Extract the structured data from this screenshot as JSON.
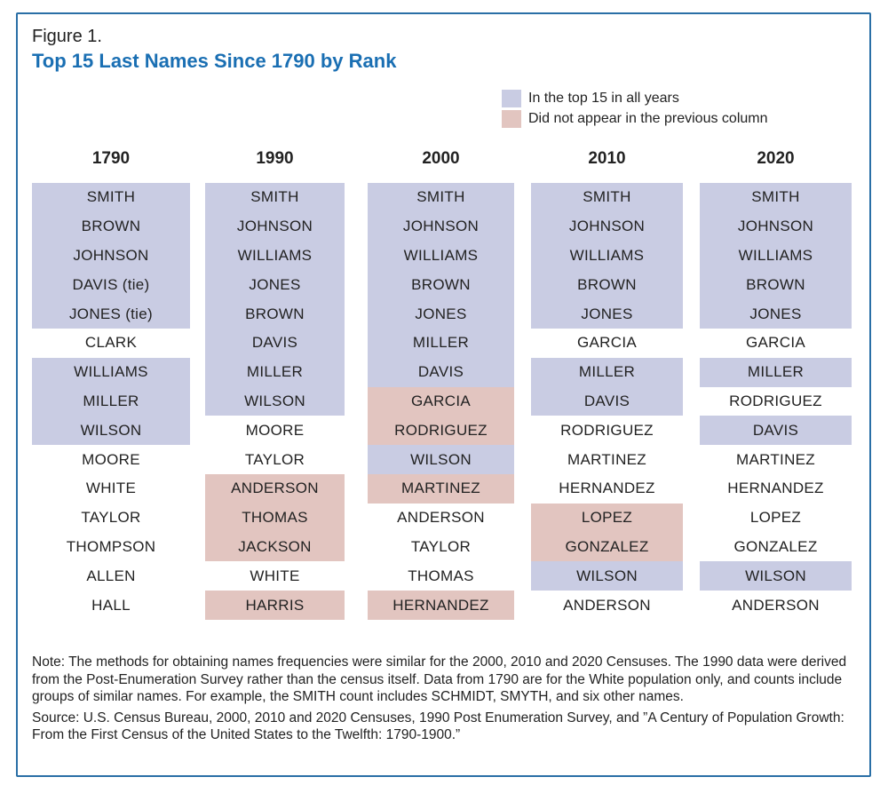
{
  "figure_label": "Figure 1.",
  "title": "Top 15 Last Names Since 1790 by Rank",
  "colors": {
    "all_years": "#c9cce3",
    "new_entry": "#e2c5c0",
    "title": "#1a6fb3",
    "frame": "#2a6fa6"
  },
  "legend": [
    {
      "label": "In the top 15 in all years",
      "color": "#c9cce3",
      "status": "all_years"
    },
    {
      "label": "Did not appear in the previous column",
      "color": "#e2c5c0",
      "status": "new_entry"
    }
  ],
  "chart_data": {
    "type": "table",
    "columns": [
      {
        "year": "1790",
        "names": [
          {
            "name": "SMITH",
            "status": "all_years"
          },
          {
            "name": "BROWN",
            "status": "all_years"
          },
          {
            "name": "JOHNSON",
            "status": "all_years"
          },
          {
            "name": "DAVIS (tie)",
            "status": "all_years"
          },
          {
            "name": "JONES (tie)",
            "status": "all_years"
          },
          {
            "name": "CLARK",
            "status": "none"
          },
          {
            "name": "WILLIAMS",
            "status": "all_years"
          },
          {
            "name": "MILLER",
            "status": "all_years"
          },
          {
            "name": "WILSON",
            "status": "all_years"
          },
          {
            "name": "MOORE",
            "status": "none"
          },
          {
            "name": "WHITE",
            "status": "none"
          },
          {
            "name": "TAYLOR",
            "status": "none"
          },
          {
            "name": "THOMPSON",
            "status": "none"
          },
          {
            "name": "ALLEN",
            "status": "none"
          },
          {
            "name": "HALL",
            "status": "none"
          }
        ]
      },
      {
        "year": "1990",
        "names": [
          {
            "name": "SMITH",
            "status": "all_years"
          },
          {
            "name": "JOHNSON",
            "status": "all_years"
          },
          {
            "name": "WILLIAMS",
            "status": "all_years"
          },
          {
            "name": "JONES",
            "status": "all_years"
          },
          {
            "name": "BROWN",
            "status": "all_years"
          },
          {
            "name": "DAVIS",
            "status": "all_years"
          },
          {
            "name": "MILLER",
            "status": "all_years"
          },
          {
            "name": "WILSON",
            "status": "all_years"
          },
          {
            "name": "MOORE",
            "status": "none"
          },
          {
            "name": "TAYLOR",
            "status": "none"
          },
          {
            "name": "ANDERSON",
            "status": "new_entry"
          },
          {
            "name": "THOMAS",
            "status": "new_entry"
          },
          {
            "name": "JACKSON",
            "status": "new_entry"
          },
          {
            "name": "WHITE",
            "status": "none"
          },
          {
            "name": "HARRIS",
            "status": "new_entry"
          }
        ]
      },
      {
        "year": "2000",
        "names": [
          {
            "name": "SMITH",
            "status": "all_years"
          },
          {
            "name": "JOHNSON",
            "status": "all_years"
          },
          {
            "name": "WILLIAMS",
            "status": "all_years"
          },
          {
            "name": "BROWN",
            "status": "all_years"
          },
          {
            "name": "JONES",
            "status": "all_years"
          },
          {
            "name": "MILLER",
            "status": "all_years"
          },
          {
            "name": "DAVIS",
            "status": "all_years"
          },
          {
            "name": "GARCIA",
            "status": "new_entry"
          },
          {
            "name": "RODRIGUEZ",
            "status": "new_entry"
          },
          {
            "name": "WILSON",
            "status": "all_years"
          },
          {
            "name": "MARTINEZ",
            "status": "new_entry"
          },
          {
            "name": "ANDERSON",
            "status": "none"
          },
          {
            "name": "TAYLOR",
            "status": "none"
          },
          {
            "name": "THOMAS",
            "status": "none"
          },
          {
            "name": "HERNANDEZ",
            "status": "new_entry"
          }
        ]
      },
      {
        "year": "2010",
        "names": [
          {
            "name": "SMITH",
            "status": "all_years"
          },
          {
            "name": "JOHNSON",
            "status": "all_years"
          },
          {
            "name": "WILLIAMS",
            "status": "all_years"
          },
          {
            "name": "BROWN",
            "status": "all_years"
          },
          {
            "name": "JONES",
            "status": "all_years"
          },
          {
            "name": "GARCIA",
            "status": "none"
          },
          {
            "name": "MILLER",
            "status": "all_years"
          },
          {
            "name": "DAVIS",
            "status": "all_years"
          },
          {
            "name": "RODRIGUEZ",
            "status": "none"
          },
          {
            "name": "MARTINEZ",
            "status": "none"
          },
          {
            "name": "HERNANDEZ",
            "status": "none"
          },
          {
            "name": "LOPEZ",
            "status": "new_entry"
          },
          {
            "name": "GONZALEZ",
            "status": "new_entry"
          },
          {
            "name": "WILSON",
            "status": "all_years"
          },
          {
            "name": "ANDERSON",
            "status": "none"
          }
        ]
      },
      {
        "year": "2020",
        "names": [
          {
            "name": "SMITH",
            "status": "all_years"
          },
          {
            "name": "JOHNSON",
            "status": "all_years"
          },
          {
            "name": "WILLIAMS",
            "status": "all_years"
          },
          {
            "name": "BROWN",
            "status": "all_years"
          },
          {
            "name": "JONES",
            "status": "all_years"
          },
          {
            "name": "GARCIA",
            "status": "none"
          },
          {
            "name": "MILLER",
            "status": "all_years"
          },
          {
            "name": "RODRIGUEZ",
            "status": "none"
          },
          {
            "name": "DAVIS",
            "status": "all_years"
          },
          {
            "name": "MARTINEZ",
            "status": "none"
          },
          {
            "name": "HERNANDEZ",
            "status": "none"
          },
          {
            "name": "LOPEZ",
            "status": "none"
          },
          {
            "name": "GONZALEZ",
            "status": "none"
          },
          {
            "name": "WILSON",
            "status": "all_years"
          },
          {
            "name": "ANDERSON",
            "status": "none"
          }
        ]
      }
    ]
  },
  "note": "Note: The methods for obtaining names frequencies were similar for the 2000, 2010 and 2020 Censuses. The 1990 data were derived from the Post-Enumeration Survey rather than the census itself. Data from 1790 are for the White population only, and counts include groups of similar names. For example, the SMITH count includes SCHMIDT, SMYTH, and six other names.",
  "source": "Source: U.S. Census Bureau, 2000, 2010 and 2020 Censuses, 1990 Post Enumeration Survey, and ”A Century of Population Growth: From the First Census of the United States to the Twelfth: 1790-1900.”"
}
